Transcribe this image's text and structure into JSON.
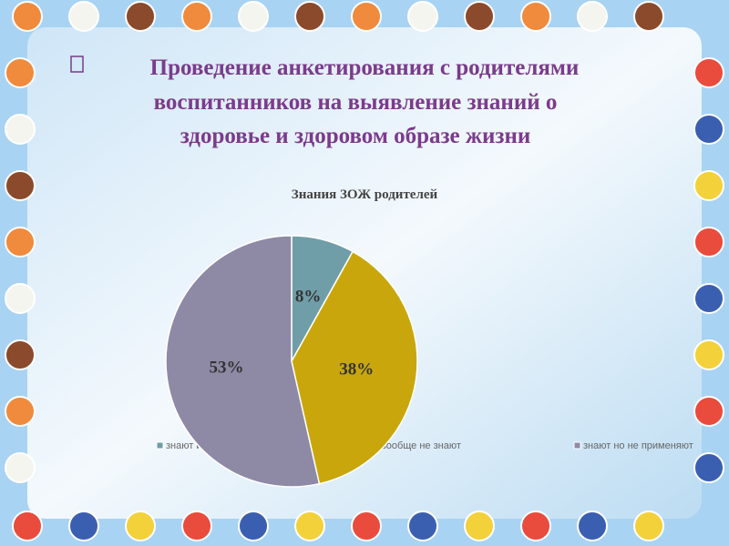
{
  "header": {
    "title_lines": [
      "Проведение анкетирования с родителями",
      "воспитанников  на выявление знаний о",
      "здоровье и здоровом образе жизни"
    ]
  },
  "chart_data": {
    "type": "pie",
    "title": "Знания  ЗОЖ  родителей",
    "categories": [
      "знают и применяют",
      "вообще не знают",
      "знают но не применяют"
    ],
    "values": [
      8,
      38,
      53
    ],
    "value_labels": [
      "8%",
      "38%",
      "53%"
    ],
    "colors": [
      "#6f9ea8",
      "#c9a70c",
      "#8e89a5"
    ],
    "legend": "bottom"
  }
}
